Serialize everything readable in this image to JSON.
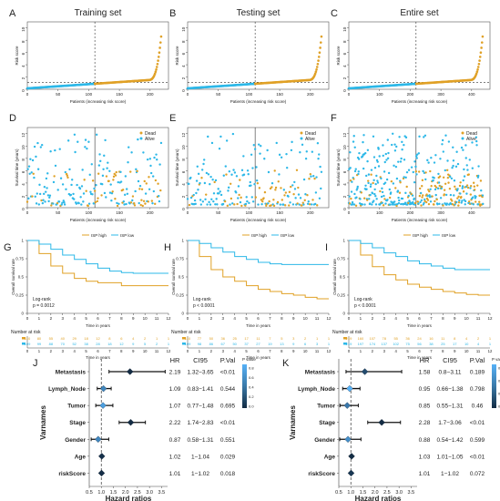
{
  "colors": {
    "high": "#E0A126",
    "low": "#2DB8E8",
    "dead": "#E0A126",
    "alive": "#2DB8E8",
    "forest_line": "#111111",
    "pval_dark": "#132B43",
    "pval_mid": "#3A79A8",
    "pval_light": "#56B1F7"
  },
  "panels": {
    "A": {
      "letter": "A",
      "title": "Training set",
      "n": 219,
      "cutoff": 1.15,
      "yticks": [
        0,
        2,
        4,
        6,
        8,
        10
      ],
      "xticks": [
        0,
        50,
        100,
        150,
        200
      ]
    },
    "B": {
      "letter": "B",
      "title": "Testing set",
      "n": 219,
      "cutoff": 1.15,
      "yticks": [
        0,
        2,
        4,
        6,
        8,
        10
      ],
      "xticks": [
        0,
        50,
        100,
        150,
        200
      ]
    },
    "C": {
      "letter": "C",
      "title": "Entire set",
      "n": 438,
      "cutoff": 1.15,
      "yticks": [
        0,
        2,
        4,
        6,
        8,
        10
      ],
      "xticks": [
        0,
        100,
        200,
        300,
        400
      ]
    },
    "D": {
      "letter": "D",
      "n": 219,
      "xticks": [
        0,
        50,
        100,
        150,
        200
      ],
      "yticks": [
        0,
        2,
        4,
        6,
        8,
        10,
        12
      ]
    },
    "E": {
      "letter": "E",
      "n": 219,
      "xticks": [
        0,
        50,
        100,
        150,
        200
      ],
      "yticks": [
        0,
        2,
        4,
        6,
        8,
        10,
        12
      ]
    },
    "F": {
      "letter": "F",
      "n": 438,
      "xticks": [
        0,
        100,
        200,
        300,
        400
      ],
      "yticks": [
        0,
        2,
        4,
        6,
        8,
        10,
        12
      ]
    },
    "G": {
      "letter": "G",
      "logrank": "Log-rank",
      "pval": "p = 0.0012"
    },
    "H": {
      "letter": "H",
      "logrank": "Log-rank",
      "pval": "p < 0.0001"
    },
    "I": {
      "letter": "I",
      "logrank": "Log-rank",
      "pval": "p < 0.0001"
    },
    "J": {
      "letter": "J"
    },
    "K": {
      "letter": "K"
    }
  },
  "labels": {
    "risk_y": "Risk score",
    "risk_x": "Patients (increasing risk score)",
    "surv_y": "Survival time (years)",
    "surv_x": "Patients (increasing risk score)",
    "legend_dead": "Dead",
    "legend_alive": "Alive",
    "km_y": "Overall survival rate",
    "km_x": "Time in years",
    "km_legend_high": "ISP high",
    "km_legend_low": "ISP low",
    "number_at_risk": "Number at risk",
    "forest_y": "Varnames",
    "forest_x": "Hazard ratios",
    "col_hr": "HR",
    "col_ci": "CI95",
    "col_p": "P.Val",
    "colorbar_title": "P value"
  },
  "chart_data": [
    {
      "type": "line",
      "panel": "G",
      "x": [
        0,
        1,
        2,
        3,
        4,
        5,
        6,
        7,
        8,
        9,
        10,
        11,
        12
      ],
      "series": [
        {
          "name": "ISP high",
          "values": [
            1.0,
            0.82,
            0.65,
            0.55,
            0.48,
            0.44,
            0.42,
            0.42,
            0.38,
            0.38,
            0.38,
            0.38,
            0.38
          ]
        },
        {
          "name": "ISP low",
          "values": [
            1.0,
            0.95,
            0.88,
            0.8,
            0.74,
            0.68,
            0.62,
            0.58,
            0.56,
            0.55,
            0.55,
            0.55,
            0.55
          ]
        }
      ],
      "xlim": [
        0,
        12
      ],
      "ylim": [
        0,
        1
      ],
      "at_risk_high": [
        "110",
        "80",
        "55",
        "40",
        "29",
        "18",
        "12",
        "8",
        "6",
        "4",
        "2",
        "1",
        "1"
      ],
      "at_risk_low": [
        "109",
        "99",
        "88",
        "70",
        "52",
        "38",
        "28",
        "18",
        "12",
        "9",
        "5",
        "2",
        "1"
      ]
    },
    {
      "type": "line",
      "panel": "H",
      "x": [
        0,
        1,
        2,
        3,
        4,
        5,
        6,
        7,
        8,
        9,
        10,
        11,
        12
      ],
      "series": [
        {
          "name": "ISP high",
          "values": [
            1.0,
            0.78,
            0.6,
            0.5,
            0.44,
            0.38,
            0.33,
            0.3,
            0.27,
            0.25,
            0.22,
            0.2,
            0.2
          ]
        },
        {
          "name": "ISP low",
          "values": [
            1.0,
            0.96,
            0.9,
            0.84,
            0.78,
            0.74,
            0.7,
            0.68,
            0.67,
            0.67,
            0.67,
            0.67,
            0.67
          ]
        }
      ],
      "xlim": [
        0,
        12
      ],
      "ylim": [
        0,
        1
      ],
      "at_risk_high": [
        "110",
        "77",
        "50",
        "36",
        "25",
        "17",
        "11",
        "7",
        "5",
        "3",
        "2",
        "1",
        "1"
      ],
      "at_risk_low": [
        "109",
        "98",
        "86",
        "67",
        "50",
        "37",
        "27",
        "19",
        "13",
        "9",
        "6",
        "3",
        "1"
      ]
    },
    {
      "type": "line",
      "panel": "I",
      "x": [
        0,
        1,
        2,
        3,
        4,
        5,
        6,
        7,
        8,
        9,
        10,
        11,
        12
      ],
      "series": [
        {
          "name": "ISP high",
          "values": [
            1.0,
            0.8,
            0.64,
            0.53,
            0.46,
            0.4,
            0.36,
            0.33,
            0.3,
            0.28,
            0.26,
            0.25,
            0.25
          ]
        },
        {
          "name": "ISP low",
          "values": [
            1.0,
            0.96,
            0.9,
            0.83,
            0.78,
            0.72,
            0.68,
            0.65,
            0.62,
            0.6,
            0.6,
            0.6,
            0.6
          ]
        }
      ],
      "xlim": [
        0,
        12
      ],
      "ylim": [
        0,
        1
      ],
      "at_risk_high": [
        "219",
        "160",
        "107",
        "78",
        "55",
        "36",
        "24",
        "16",
        "11",
        "8",
        "4",
        "2",
        "1"
      ],
      "at_risk_low": [
        "219",
        "197",
        "174",
        "137",
        "102",
        "75",
        "56",
        "38",
        "25",
        "17",
        "10",
        "4",
        "1"
      ]
    },
    {
      "type": "forest",
      "panel": "J",
      "xticks": [
        0.5,
        1.0,
        1.5,
        2.0,
        2.5,
        3.0,
        3.5
      ],
      "rows": [
        {
          "name": "Metastasis",
          "hr": 2.19,
          "lo": 1.32,
          "hi": 3.65,
          "hr_text": "2.19",
          "ci_text": "1.32−3.65",
          "p_text": "<0.01",
          "p": 0.002
        },
        {
          "name": "Lymph_Node",
          "hr": 1.09,
          "lo": 0.83,
          "hi": 1.41,
          "hr_text": "1.09",
          "ci_text": "0.83−1.41",
          "p_text": "0.544",
          "p": 0.544
        },
        {
          "name": "Tumor",
          "hr": 1.07,
          "lo": 0.77,
          "hi": 1.48,
          "hr_text": "1.07",
          "ci_text": "0.77−1.48",
          "p_text": "0.695",
          "p": 0.695
        },
        {
          "name": "Stage",
          "hr": 2.22,
          "lo": 1.74,
          "hi": 2.83,
          "hr_text": "2.22",
          "ci_text": "1.74−2.83",
          "p_text": "<0.01",
          "p": 0.001
        },
        {
          "name": "Gender",
          "hr": 0.87,
          "lo": 0.58,
          "hi": 1.31,
          "hr_text": "0.87",
          "ci_text": "0.58−1.31",
          "p_text": "0.551",
          "p": 0.551
        },
        {
          "name": "Age",
          "hr": 1.02,
          "lo": 1.0,
          "hi": 1.04,
          "hr_text": "1.02",
          "ci_text": "1−1.04",
          "p_text": "0.029",
          "p": 0.029
        },
        {
          "name": "riskScore",
          "hr": 1.01,
          "lo": 1.0,
          "hi": 1.02,
          "hr_text": "1.01",
          "ci_text": "1−1.02",
          "p_text": "0.018",
          "p": 0.018
        }
      ],
      "colorbar_ticks": [
        "0.8",
        "0.6",
        "0.4",
        "0.2",
        "0.0"
      ]
    },
    {
      "type": "forest",
      "panel": "K",
      "xticks": [
        0.5,
        1.0,
        1.5,
        2.0,
        2.5,
        3.0,
        3.5
      ],
      "rows": [
        {
          "name": "Metastasis",
          "hr": 1.58,
          "lo": 0.8,
          "hi": 3.11,
          "hr_text": "1.58",
          "ci_text": "0.8−3.11",
          "p_text": "0.189",
          "p": 0.189
        },
        {
          "name": "Lymph_Node",
          "hr": 0.95,
          "lo": 0.66,
          "hi": 1.38,
          "hr_text": "0.95",
          "ci_text": "0.66−1.38",
          "p_text": "0.798",
          "p": 0.798
        },
        {
          "name": "Tumor",
          "hr": 0.85,
          "lo": 0.55,
          "hi": 1.31,
          "hr_text": "0.85",
          "ci_text": "0.55−1.31",
          "p_text": "0.46",
          "p": 0.46
        },
        {
          "name": "Stage",
          "hr": 2.28,
          "lo": 1.7,
          "hi": 3.06,
          "hr_text": "2.28",
          "ci_text": "1.7−3.06",
          "p_text": "<0.01",
          "p": 0.001
        },
        {
          "name": "Gender",
          "hr": 0.88,
          "lo": 0.54,
          "hi": 1.42,
          "hr_text": "0.88",
          "ci_text": "0.54−1.42",
          "p_text": "0.599",
          "p": 0.599
        },
        {
          "name": "Age",
          "hr": 1.03,
          "lo": 1.01,
          "hi": 1.05,
          "hr_text": "1.03",
          "ci_text": "1.01−1.05",
          "p_text": "<0.01",
          "p": 0.004
        },
        {
          "name": "riskScore",
          "hr": 1.01,
          "lo": 1.0,
          "hi": 1.02,
          "hr_text": "1.01",
          "ci_text": "1−1.02",
          "p_text": "0.072",
          "p": 0.072
        }
      ],
      "colorbar_ticks": [
        "0.8",
        "0.6",
        "0.4",
        "0.2"
      ]
    }
  ]
}
